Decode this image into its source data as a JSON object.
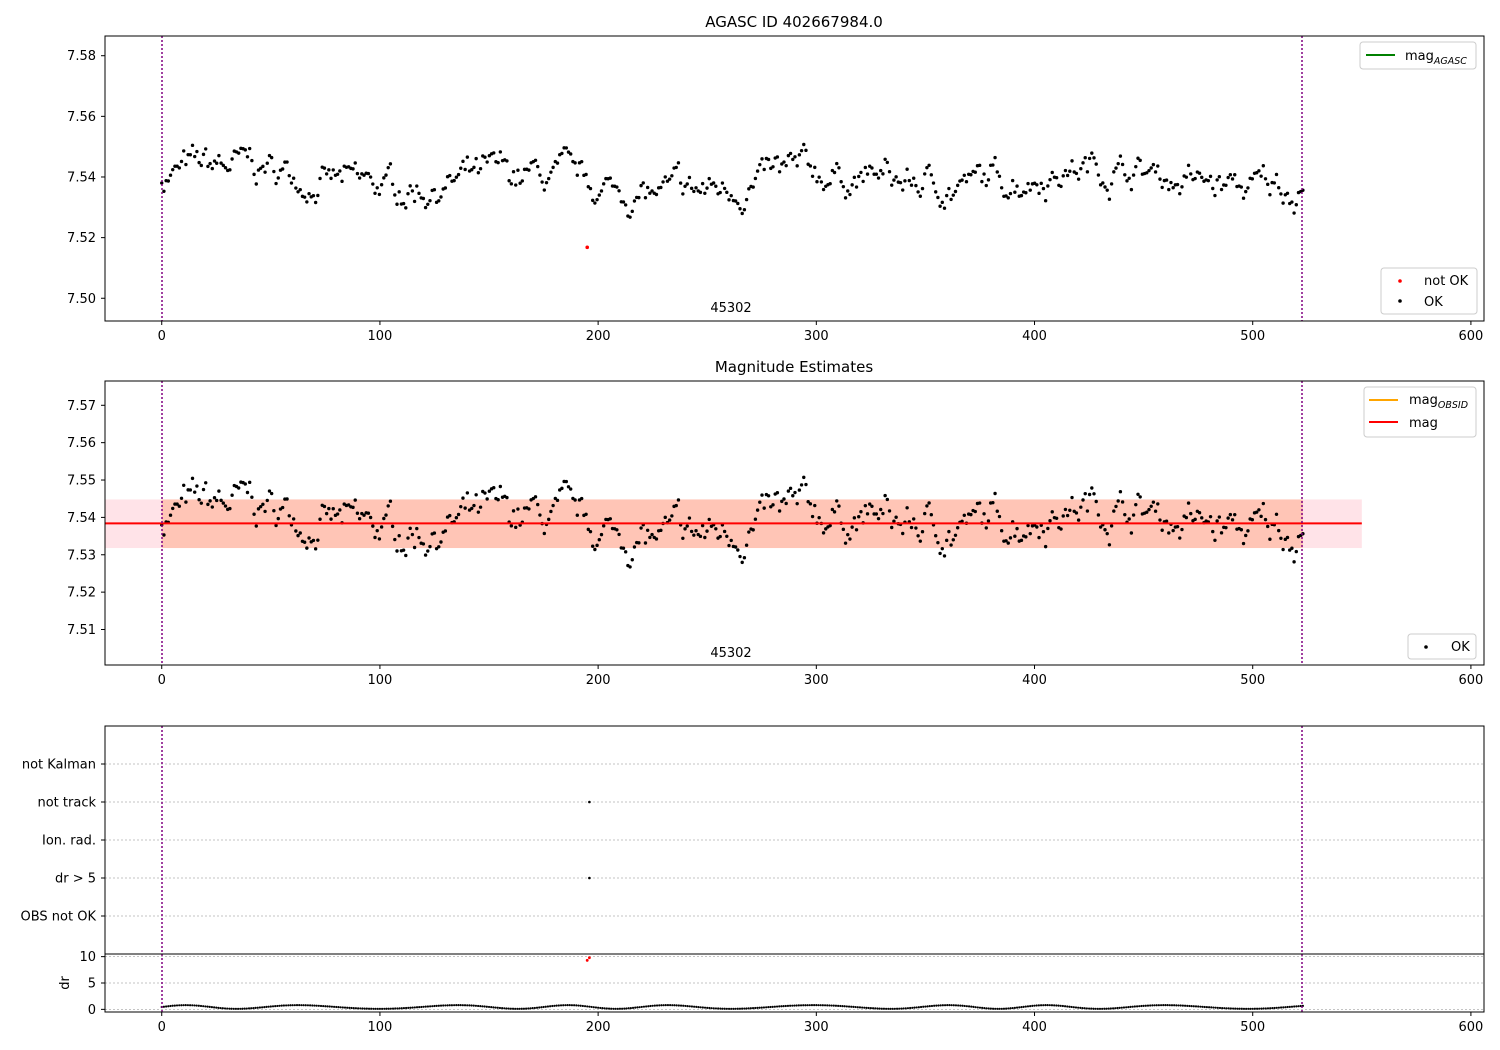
{
  "figure": {
    "background": "#ffffff"
  },
  "colors": {
    "ok": "#000000",
    "not_ok": "#ff0000",
    "mag_agasc": "#008000",
    "mag_obsid": "#ffa500",
    "mag": "#ff0000",
    "band_outer": "#ffc0cb",
    "band_inner": "#ffa07a",
    "obs_bound": "#800080"
  },
  "chart_data": [
    {
      "type": "scatter",
      "title": "AGASC ID 402667984.0",
      "xlim": [
        -26,
        606
      ],
      "ylim": [
        7.4925,
        7.5865
      ],
      "xticks": [
        0,
        100,
        200,
        300,
        400,
        500,
        600
      ],
      "yticks": [
        7.5,
        7.52,
        7.54,
        7.56,
        7.58
      ],
      "ytick_labels": [
        "7.50",
        "7.52",
        "7.54",
        "7.56",
        "7.58"
      ],
      "obsid_label": "45302",
      "obsid_boundaries": [
        0,
        523
      ],
      "series": [
        {
          "name": "not OK",
          "x": [
            195
          ],
          "y": [
            7.5168
          ]
        },
        {
          "name": "OK",
          "x_range": [
            0,
            523
          ],
          "count": 520,
          "center": 7.5385,
          "spread": 0.008
        }
      ],
      "legend": [
        {
          "label": "mag",
          "subscript": "AGASC",
          "marker": "line",
          "color": "#008000"
        }
      ],
      "legend2": [
        {
          "label": "not OK",
          "color": "#ff0000"
        },
        {
          "label": "OK",
          "color": "#000000"
        }
      ],
      "legend_placement": "upper right; lower right"
    },
    {
      "type": "scatter",
      "title": "Magnitude Estimates",
      "xlim": [
        -26,
        606
      ],
      "ylim": [
        7.5005,
        7.5765
      ],
      "xticks": [
        0,
        100,
        200,
        300,
        400,
        500,
        600
      ],
      "yticks": [
        7.51,
        7.52,
        7.53,
        7.54,
        7.55,
        7.56,
        7.57
      ],
      "ytick_labels": [
        "7.51",
        "7.52",
        "7.53",
        "7.54",
        "7.55",
        "7.56",
        "7.57"
      ],
      "obsid_label": "45302",
      "mag_line": {
        "value": 7.5384,
        "x": [
          -26,
          550
        ]
      },
      "mag_band": {
        "lower": 7.5318,
        "upper": 7.5448,
        "x": [
          -26,
          550
        ]
      },
      "mag_obsid_band": {
        "lower": 7.5318,
        "upper": 7.5448,
        "x": [
          0,
          523
        ]
      },
      "legend": [
        {
          "label": "mag",
          "subscript": "OBSID",
          "marker": "line",
          "color": "#ffa500"
        },
        {
          "label": "mag",
          "marker": "line",
          "color": "#ff0000"
        }
      ],
      "legend2": [
        {
          "label": "OK",
          "color": "#000000"
        }
      ]
    },
    {
      "type": "scatter",
      "title": "",
      "xlim": [
        -26,
        606
      ],
      "categories": [
        "not Kalman",
        "not track",
        "Ion. rad.",
        "dr > 5",
        "OBS not OK"
      ],
      "flag_points": [
        {
          "category": "not track",
          "x": 196
        },
        {
          "category": "dr > 5",
          "x": 196
        }
      ]
    },
    {
      "type": "scatter",
      "ylabel": "dr",
      "xlim": [
        -26,
        606
      ],
      "ylim": [
        -0.5,
        10.5
      ],
      "yticks": [
        0,
        5,
        10
      ],
      "xticks": [
        0,
        100,
        200,
        300,
        400,
        500,
        600
      ],
      "outliers": [
        {
          "x": 195,
          "y": 9.3
        },
        {
          "x": 196,
          "y": 9.8
        }
      ],
      "baseline": {
        "min": 0.1,
        "max": 0.8
      }
    }
  ]
}
